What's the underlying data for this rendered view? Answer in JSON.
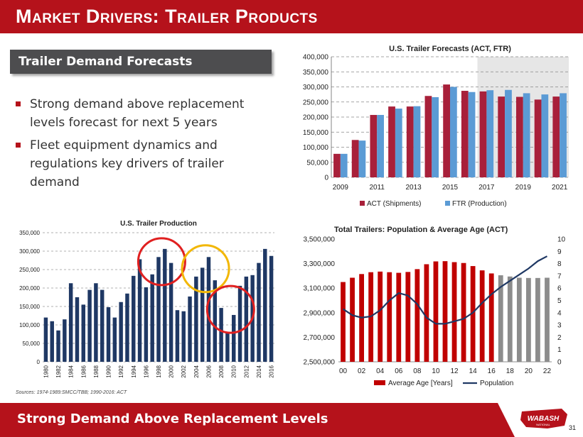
{
  "header": {
    "title": "Market Drivers: Trailer Products"
  },
  "section": {
    "title": "Trailer Demand Forecasts"
  },
  "bullets": [
    "Strong demand above replacement levels forecast for next 5 years",
    "Fleet equipment dynamics and regulations key drivers of trailer demand"
  ],
  "footer": {
    "text": "Strong Demand Above Replacement Levels",
    "page": "31",
    "logo": "WABASH NATIONAL"
  },
  "colors": {
    "brand_red": "#b5121b",
    "act": "#a8203a",
    "ftr": "#5b9bd5",
    "navy": "#1f3864",
    "age_red": "#c00000",
    "age_grey": "#8c8c8c",
    "highlight_red": "#e02020",
    "highlight_yellow": "#f2b705"
  },
  "chart_data": [
    {
      "id": "forecast",
      "type": "bar",
      "title": "U.S. Trailer Forecasts (ACT, FTR)",
      "categories": [
        "2009",
        "2010",
        "2011",
        "2012",
        "2013",
        "2014",
        "2015",
        "2016",
        "2017",
        "2018",
        "2019",
        "2020",
        "2021"
      ],
      "x_tick_labels": [
        "2009",
        "2011",
        "2013",
        "2015",
        "2017",
        "2019",
        "2021"
      ],
      "y_ticks": [
        "0",
        "50,000",
        "100,000",
        "150,000",
        "200,000",
        "250,000",
        "300,000",
        "350,000",
        "400,000"
      ],
      "ylim": [
        0,
        400000
      ],
      "forecast_shaded_from": "2017",
      "legend": "bottom",
      "series": [
        {
          "name": "ACT (Shipments)",
          "values": [
            78000,
            124000,
            207000,
            235000,
            235000,
            270000,
            308000,
            287000,
            285000,
            268000,
            267000,
            258000,
            268000
          ]
        },
        {
          "name": "FTR (Production)",
          "values": [
            78000,
            122000,
            207000,
            228000,
            236000,
            266000,
            300000,
            283000,
            289000,
            290000,
            279000,
            275000,
            279000
          ]
        }
      ]
    },
    {
      "id": "production",
      "type": "bar",
      "title": "U.S. Trailer Production",
      "x": [
        1980,
        1981,
        1982,
        1983,
        1984,
        1985,
        1986,
        1987,
        1988,
        1989,
        1990,
        1991,
        1992,
        1993,
        1994,
        1995,
        1996,
        1997,
        1998,
        1999,
        2000,
        2001,
        2002,
        2003,
        2004,
        2005,
        2006,
        2007,
        2008,
        2009,
        2010,
        2011,
        2012,
        2013,
        2014,
        2015,
        2016
      ],
      "x_tick_labels": [
        "1980",
        "1982",
        "1984",
        "1986",
        "1988",
        "1990",
        "1992",
        "1994",
        "1996",
        "1998",
        "2000",
        "2002",
        "2004",
        "2006",
        "2008",
        "2010",
        "2012",
        "2014",
        "2016"
      ],
      "values": [
        120000,
        110000,
        85000,
        115000,
        213000,
        175000,
        155000,
        195000,
        213000,
        195000,
        148000,
        120000,
        162000,
        185000,
        233000,
        278000,
        202000,
        237000,
        284000,
        306000,
        268000,
        140000,
        137000,
        177000,
        231000,
        255000,
        284000,
        221000,
        146000,
        78000,
        127000,
        206000,
        231000,
        235000,
        268000,
        306000,
        287000
      ],
      "y_ticks": [
        "0",
        "50,000",
        "100,000",
        "150,000",
        "200,000",
        "250,000",
        "300,000",
        "350,000"
      ],
      "ylim": [
        0,
        350000
      ],
      "source": "Sources: 1974-1989:SMCC/TBB;  1990-2016:  ACT",
      "highlights": [
        {
          "color": "red",
          "around": [
            "1997",
            "1998",
            "1999",
            "2000"
          ]
        },
        {
          "color": "yellow",
          "around": [
            "2004",
            "2005",
            "2006",
            "2007"
          ]
        },
        {
          "color": "red",
          "around": [
            "2008",
            "2009",
            "2010",
            "2011"
          ]
        }
      ]
    },
    {
      "id": "population",
      "type": "bar+line",
      "title": "Total Trailers: Population & Average Age (ACT)",
      "x": [
        "00",
        "01",
        "02",
        "03",
        "04",
        "05",
        "06",
        "07",
        "08",
        "09",
        "10",
        "11",
        "12",
        "13",
        "14",
        "15",
        "16",
        "17",
        "18",
        "19",
        "20",
        "21",
        "22"
      ],
      "x_tick_labels": [
        "00",
        "02",
        "04",
        "06",
        "08",
        "10",
        "12",
        "14",
        "16",
        "18",
        "20",
        "22"
      ],
      "forecast_from": "17",
      "y_ticks_left": [
        "2,500,000",
        "2,700,000",
        "2,900,000",
        "3,100,000",
        "3,300,000",
        "3,500,000"
      ],
      "y_ticks_right": [
        "0",
        "1",
        "2",
        "3",
        "4",
        "5",
        "6",
        "7",
        "8",
        "9",
        "10"
      ],
      "ylim_left": [
        2500000,
        3500000
      ],
      "ylim_right": [
        0,
        10
      ],
      "legend": "bottom",
      "series": [
        {
          "name": "Average Age [Years]",
          "axis": "left",
          "values": [
            3150000,
            3185000,
            3215000,
            3230000,
            3235000,
            3230000,
            3225000,
            3232000,
            3255000,
            3295000,
            3318000,
            3320000,
            3312000,
            3305000,
            3280000,
            3245000,
            3220000,
            3205000,
            3195000,
            3185000,
            3183000,
            3183000,
            3185000
          ]
        },
        {
          "name": "Population",
          "axis": "right",
          "values": [
            4.3,
            3.8,
            3.6,
            3.7,
            4.2,
            5.0,
            5.6,
            5.4,
            4.7,
            3.6,
            3.1,
            3.1,
            3.3,
            3.5,
            4.0,
            4.8,
            5.5,
            6.1,
            6.6,
            7.1,
            7.6,
            8.2,
            8.6
          ]
        }
      ]
    }
  ]
}
